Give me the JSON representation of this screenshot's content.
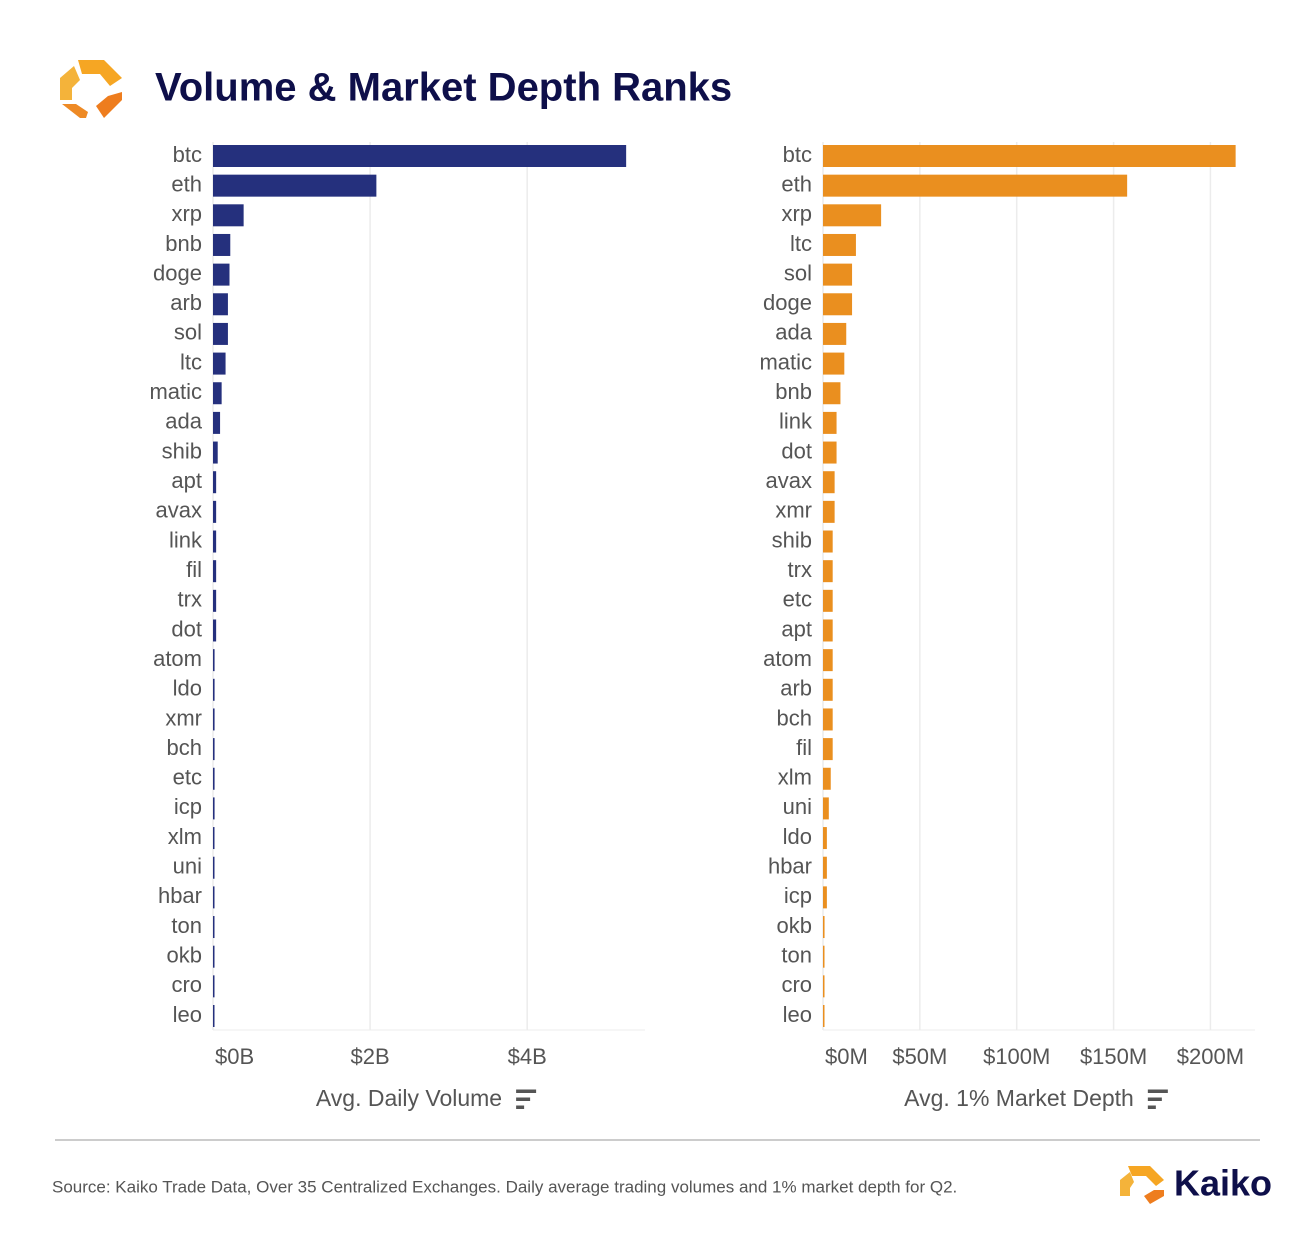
{
  "title": "Volume & Market Depth Ranks",
  "source": "Source: Kaiko Trade Data, Over 35 Centralized Exchanges. Daily average trading volumes and 1% market depth for Q2.",
  "brand": "Kaiko",
  "chart_data": [
    {
      "type": "barh",
      "x_label": "Avg. Daily Volume",
      "color": "#25307d",
      "categories": [
        "btc",
        "eth",
        "xrp",
        "bnb",
        "doge",
        "arb",
        "sol",
        "ltc",
        "matic",
        "ada",
        "shib",
        "apt",
        "avax",
        "link",
        "fil",
        "trx",
        "dot",
        "atom",
        "ldo",
        "xmr",
        "bch",
        "etc",
        "icp",
        "xlm",
        "uni",
        "hbar",
        "ton",
        "okb",
        "cro",
        "leo"
      ],
      "values": [
        5.26,
        2.08,
        0.39,
        0.22,
        0.21,
        0.19,
        0.19,
        0.16,
        0.11,
        0.09,
        0.06,
        0.04,
        0.04,
        0.04,
        0.04,
        0.04,
        0.04,
        0.02,
        0.02,
        0.02,
        0.02,
        0.02,
        0.02,
        0.01,
        0.01,
        0.01,
        0.01,
        0.01,
        0.01,
        0.01
      ],
      "xlim": [
        0,
        5.5
      ],
      "xticks": [
        {
          "value": 0,
          "label": "$0B"
        },
        {
          "value": 2,
          "label": "$2B"
        },
        {
          "value": 4,
          "label": "$4B"
        }
      ],
      "grid": true
    },
    {
      "type": "barh",
      "x_label": "Avg. 1% Market Depth",
      "color": "#ea8f1f",
      "categories": [
        "btc",
        "eth",
        "xrp",
        "ltc",
        "sol",
        "doge",
        "ada",
        "matic",
        "bnb",
        "link",
        "dot",
        "avax",
        "xmr",
        "shib",
        "trx",
        "etc",
        "apt",
        "atom",
        "arb",
        "bch",
        "fil",
        "xlm",
        "uni",
        "ldo",
        "hbar",
        "icp",
        "okb",
        "ton",
        "cro",
        "leo"
      ],
      "values": [
        213,
        157,
        30,
        17,
        15,
        15,
        12,
        11,
        9,
        7,
        7,
        6,
        6,
        5,
        5,
        5,
        5,
        5,
        5,
        5,
        5,
        4,
        3,
        2,
        2,
        2,
        0.8,
        0.6,
        0.5,
        0.4
      ],
      "xlim": [
        0,
        223
      ],
      "xticks": [
        {
          "value": 0,
          "label": "$0M"
        },
        {
          "value": 50,
          "label": "$50M"
        },
        {
          "value": 100,
          "label": "$100M"
        },
        {
          "value": 150,
          "label": "$150M"
        },
        {
          "value": 200,
          "label": "$200M"
        }
      ],
      "grid": true
    }
  ]
}
